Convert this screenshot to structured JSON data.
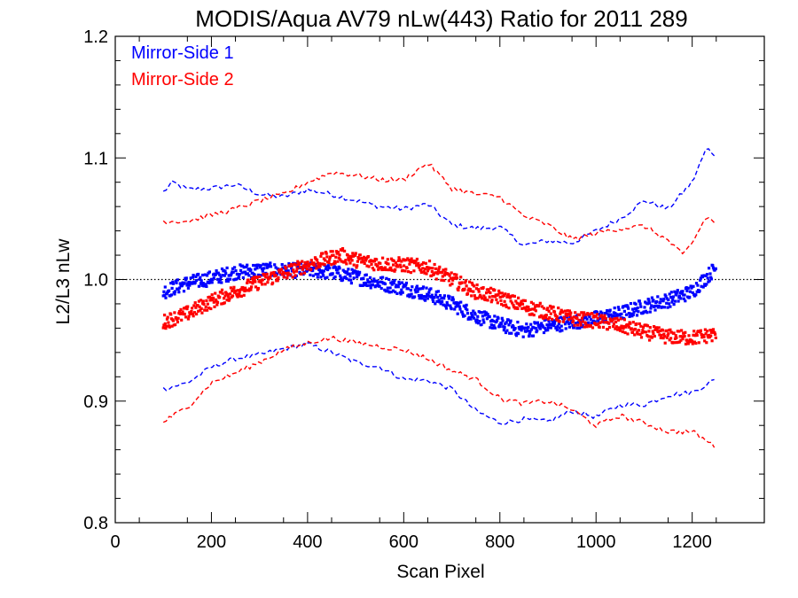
{
  "chart_data": {
    "type": "scatter",
    "title": "MODIS/Aqua AV79 nLw(443) Ratio for 2011 289",
    "xlabel": "Scan Pixel",
    "ylabel": "L2/L3 nLw",
    "xlim": [
      0,
      1350
    ],
    "ylim": [
      0.8,
      1.2
    ],
    "x_ticks": [
      0,
      200,
      400,
      600,
      800,
      1000,
      1200
    ],
    "x_tick_labels": [
      "0",
      "200",
      "400",
      "600",
      "800",
      "1000",
      "1200"
    ],
    "y_ticks": [
      0.8,
      0.9,
      1.0,
      1.1,
      1.2
    ],
    "y_tick_labels": [
      "0.8",
      "0.9",
      "1.0",
      "1.1",
      "1.2"
    ],
    "reference_line": 1.0,
    "legend_position": "top-left",
    "series": [
      {
        "name": "Mirror-Side 1",
        "color": "#0000ff",
        "mean": [
          [
            100,
            0.99
          ],
          [
            150,
            0.997
          ],
          [
            200,
            1.001
          ],
          [
            250,
            1.006
          ],
          [
            300,
            1.008
          ],
          [
            350,
            1.007
          ],
          [
            400,
            1.008
          ],
          [
            450,
            1.006
          ],
          [
            500,
            1.002
          ],
          [
            550,
            0.997
          ],
          [
            600,
            0.993
          ],
          [
            650,
            0.988
          ],
          [
            700,
            0.98
          ],
          [
            750,
            0.97
          ],
          [
            800,
            0.963
          ],
          [
            850,
            0.958
          ],
          [
            900,
            0.962
          ],
          [
            950,
            0.965
          ],
          [
            1000,
            0.968
          ],
          [
            1050,
            0.972
          ],
          [
            1100,
            0.978
          ],
          [
            1150,
            0.983
          ],
          [
            1200,
            0.99
          ],
          [
            1250,
            1.01
          ]
        ],
        "upper": [
          [
            100,
            1.072
          ],
          [
            120,
            1.08
          ],
          [
            150,
            1.074
          ],
          [
            200,
            1.075
          ],
          [
            250,
            1.078
          ],
          [
            300,
            1.07
          ],
          [
            350,
            1.068
          ],
          [
            400,
            1.074
          ],
          [
            450,
            1.07
          ],
          [
            500,
            1.065
          ],
          [
            550,
            1.06
          ],
          [
            600,
            1.058
          ],
          [
            650,
            1.062
          ],
          [
            700,
            1.045
          ],
          [
            750,
            1.042
          ],
          [
            800,
            1.043
          ],
          [
            850,
            1.028
          ],
          [
            900,
            1.032
          ],
          [
            950,
            1.03
          ],
          [
            1000,
            1.04
          ],
          [
            1050,
            1.05
          ],
          [
            1100,
            1.065
          ],
          [
            1150,
            1.058
          ],
          [
            1200,
            1.08
          ],
          [
            1230,
            1.108
          ],
          [
            1250,
            1.102
          ]
        ],
        "lower": [
          [
            100,
            0.91
          ],
          [
            150,
            0.915
          ],
          [
            200,
            0.928
          ],
          [
            250,
            0.935
          ],
          [
            300,
            0.938
          ],
          [
            350,
            0.943
          ],
          [
            400,
            0.947
          ],
          [
            450,
            0.94
          ],
          [
            500,
            0.932
          ],
          [
            550,
            0.928
          ],
          [
            600,
            0.918
          ],
          [
            650,
            0.917
          ],
          [
            700,
            0.91
          ],
          [
            750,
            0.892
          ],
          [
            800,
            0.882
          ],
          [
            850,
            0.885
          ],
          [
            900,
            0.883
          ],
          [
            950,
            0.892
          ],
          [
            1000,
            0.887
          ],
          [
            1050,
            0.897
          ],
          [
            1100,
            0.897
          ],
          [
            1150,
            0.905
          ],
          [
            1200,
            0.907
          ],
          [
            1250,
            0.918
          ]
        ]
      },
      {
        "name": "Mirror-Side 2",
        "color": "#ff0000",
        "mean": [
          [
            100,
            0.965
          ],
          [
            150,
            0.972
          ],
          [
            200,
            0.982
          ],
          [
            250,
            0.99
          ],
          [
            300,
            0.998
          ],
          [
            350,
            1.005
          ],
          [
            400,
            1.012
          ],
          [
            450,
            1.018
          ],
          [
            470,
            1.02
          ],
          [
            500,
            1.016
          ],
          [
            550,
            1.013
          ],
          [
            600,
            1.012
          ],
          [
            650,
            1.01
          ],
          [
            700,
            1.0
          ],
          [
            750,
            0.99
          ],
          [
            800,
            0.985
          ],
          [
            850,
            0.978
          ],
          [
            900,
            0.973
          ],
          [
            950,
            0.968
          ],
          [
            1000,
            0.966
          ],
          [
            1050,
            0.962
          ],
          [
            1100,
            0.957
          ],
          [
            1150,
            0.953
          ],
          [
            1200,
            0.952
          ],
          [
            1250,
            0.955
          ]
        ],
        "upper": [
          [
            100,
            1.048
          ],
          [
            150,
            1.048
          ],
          [
            200,
            1.053
          ],
          [
            250,
            1.058
          ],
          [
            300,
            1.065
          ],
          [
            350,
            1.07
          ],
          [
            400,
            1.08
          ],
          [
            450,
            1.088
          ],
          [
            500,
            1.086
          ],
          [
            550,
            1.082
          ],
          [
            600,
            1.082
          ],
          [
            650,
            1.096
          ],
          [
            700,
            1.075
          ],
          [
            750,
            1.07
          ],
          [
            800,
            1.068
          ],
          [
            850,
            1.052
          ],
          [
            900,
            1.045
          ],
          [
            950,
            1.033
          ],
          [
            1000,
            1.038
          ],
          [
            1050,
            1.042
          ],
          [
            1100,
            1.044
          ],
          [
            1150,
            1.032
          ],
          [
            1180,
            1.02
          ],
          [
            1200,
            1.03
          ],
          [
            1230,
            1.052
          ],
          [
            1250,
            1.045
          ]
        ],
        "lower": [
          [
            100,
            0.883
          ],
          [
            150,
            0.895
          ],
          [
            200,
            0.915
          ],
          [
            250,
            0.923
          ],
          [
            300,
            0.932
          ],
          [
            350,
            0.942
          ],
          [
            400,
            0.948
          ],
          [
            450,
            0.952
          ],
          [
            500,
            0.948
          ],
          [
            550,
            0.945
          ],
          [
            600,
            0.942
          ],
          [
            650,
            0.935
          ],
          [
            700,
            0.925
          ],
          [
            750,
            0.918
          ],
          [
            800,
            0.902
          ],
          [
            850,
            0.898
          ],
          [
            900,
            0.9
          ],
          [
            950,
            0.893
          ],
          [
            1000,
            0.88
          ],
          [
            1050,
            0.888
          ],
          [
            1100,
            0.882
          ],
          [
            1150,
            0.875
          ],
          [
            1200,
            0.875
          ],
          [
            1250,
            0.862
          ]
        ]
      }
    ]
  }
}
